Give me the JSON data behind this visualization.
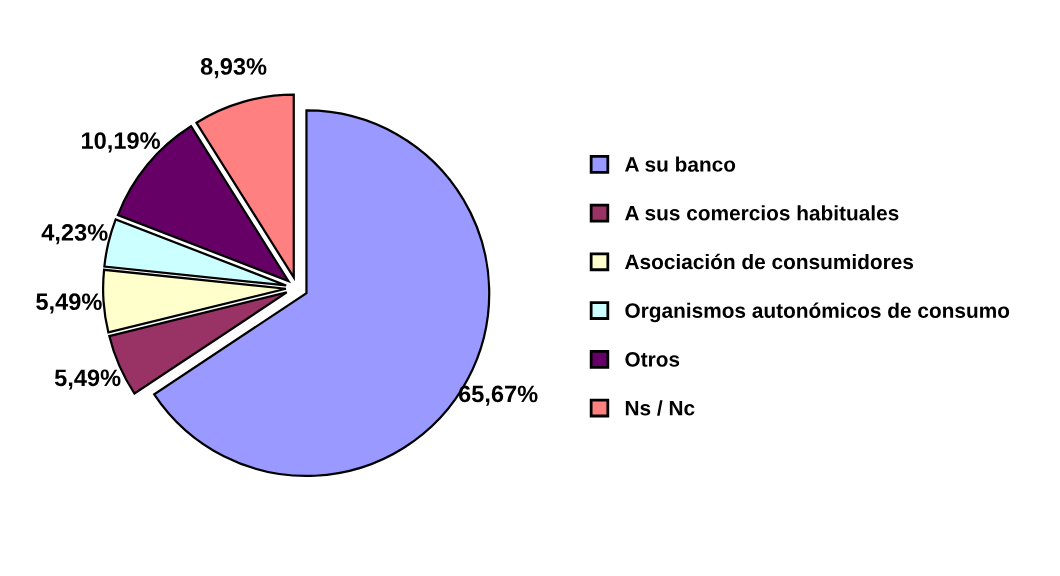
{
  "chart_data": {
    "type": "pie",
    "categories": [
      "A su banco",
      "A sus comercios habituales",
      "Asociación de consumidores",
      "Organismos autonómicos de consumo",
      "Otros",
      "Ns / Nc"
    ],
    "values": [
      65.67,
      5.49,
      5.49,
      4.23,
      10.19,
      8.93
    ],
    "value_labels": [
      "65,67%",
      "5,49%",
      "5,49%",
      "4,23%",
      "10,19%",
      "8,93%"
    ],
    "colors": [
      "#9999ff",
      "#993366",
      "#ffffcc",
      "#ccffff",
      "#660066",
      "#ff8080"
    ],
    "legend": "right"
  }
}
